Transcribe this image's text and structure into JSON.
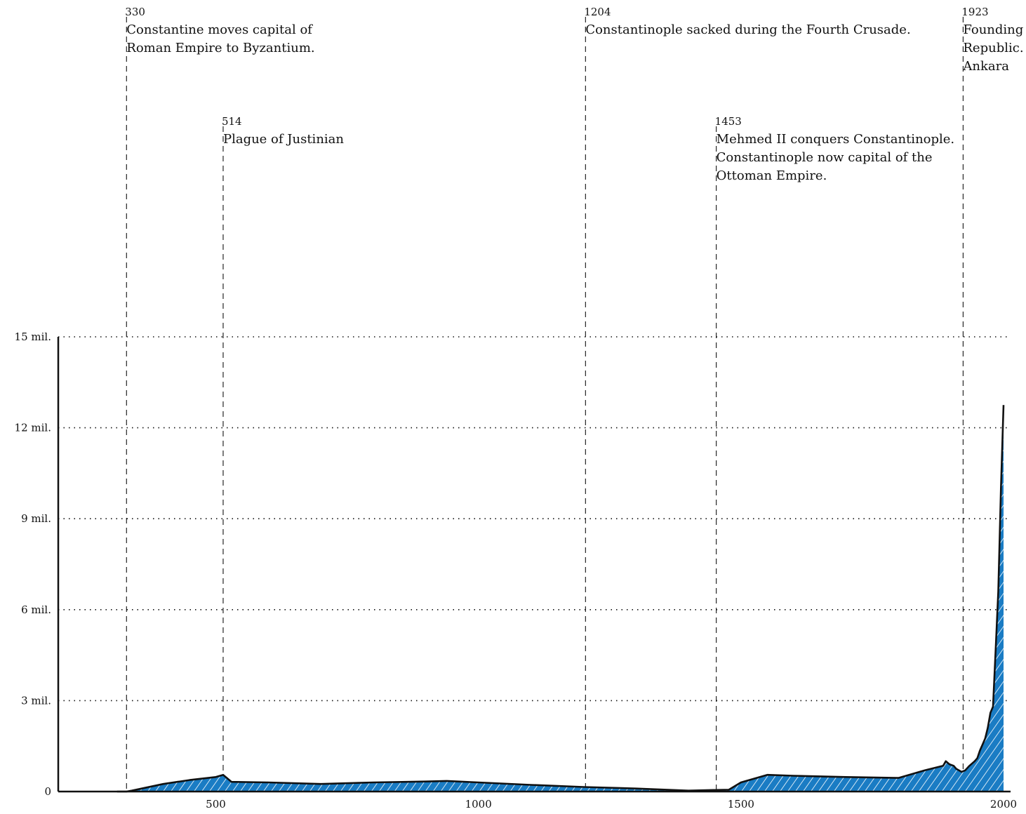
{
  "chart_data": {
    "type": "area",
    "title": "",
    "xlabel": "",
    "ylabel": "",
    "xlim": [
      200,
      2000
    ],
    "ylim": [
      0,
      15000000
    ],
    "grid": true,
    "legend": "none",
    "x_ticks": [
      {
        "value": 500,
        "label": "500"
      },
      {
        "value": 1000,
        "label": "1000"
      },
      {
        "value": 1500,
        "label": "1500"
      },
      {
        "value": 2000,
        "label": "2000"
      }
    ],
    "y_ticks": [
      {
        "value": 0,
        "label": "0"
      },
      {
        "value": 3000000,
        "label": "3 mil."
      },
      {
        "value": 6000000,
        "label": "6 mil."
      },
      {
        "value": 9000000,
        "label": "9 mil."
      },
      {
        "value": 12000000,
        "label": "12 mil."
      },
      {
        "value": 15000000,
        "label": "15 mil."
      }
    ],
    "series": [
      {
        "color": "#1a7cc4",
        "x": [
          312,
          330,
          340,
          400,
          450,
          500,
          514,
          530,
          600,
          700,
          800,
          900,
          940,
          1000,
          1100,
          1200,
          1300,
          1400,
          1450,
          1477,
          1500,
          1550,
          1600,
          1700,
          1800,
          1850,
          1885,
          1890,
          1897,
          1905,
          1910,
          1920,
          1927,
          1935,
          1945,
          1950,
          1955,
          1960,
          1965,
          1970,
          1975,
          1980,
          1985,
          1990,
          1995,
          2000
        ],
        "values": [
          0,
          0,
          30000,
          250000,
          380000,
          480000,
          550000,
          320000,
          300000,
          250000,
          300000,
          330000,
          350000,
          300000,
          220000,
          150000,
          100000,
          30000,
          50000,
          60000,
          300000,
          550000,
          520000,
          480000,
          450000,
          700000,
          850000,
          1000000,
          900000,
          850000,
          750000,
          650000,
          700000,
          850000,
          1000000,
          1100000,
          1350000,
          1550000,
          1750000,
          2100000,
          2600000,
          2800000,
          4700000,
          6600000,
          10000000,
          12750000
        ]
      }
    ],
    "events": [
      {
        "x": 330,
        "year": "330",
        "lines": [
          "Constantine moves capital of",
          "Roman Empire to Byzantium."
        ],
        "row": 0
      },
      {
        "x": 514,
        "year": "514",
        "lines": [
          "Plague of Justinian"
        ],
        "row": 1
      },
      {
        "x": 1204,
        "year": "1204",
        "lines": [
          "Constantinople sacked during the Fourth Crusade."
        ],
        "row": 0
      },
      {
        "x": 1453,
        "year": "1453",
        "lines": [
          "Mehmed II conquers Constantinople.",
          "Constantinople now capital of the",
          "Ottoman Empire."
        ],
        "row": 1
      },
      {
        "x": 1923,
        "year": "1923",
        "lines": [
          "Founding of the Turkish",
          "Republic. Capital moves to",
          "Ankara"
        ],
        "row": 0
      }
    ]
  }
}
